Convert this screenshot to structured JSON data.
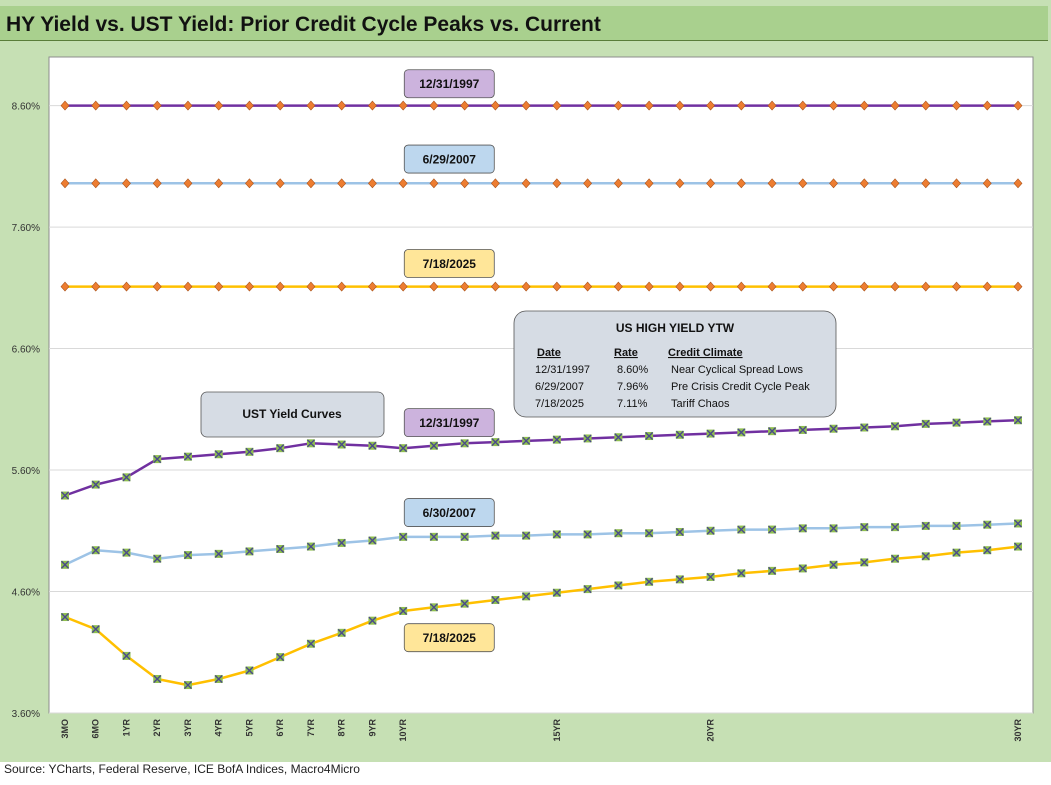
{
  "title": "HY Yield vs. UST Yield: Prior Credit Cycle Peaks vs. Current",
  "source": "Source: YCharts, Federal Reserve, ICE BofA Indices, Macro4Micro",
  "colors": {
    "purple": "#7030a0",
    "blue": "#9dc3e6",
    "gold": "#ffc000",
    "diamond": "#ed7d31",
    "marker_fill": "#8fbf4f",
    "marker_x": "#4a4a8a",
    "label_purple": "#ccb3dd",
    "label_blue": "#bdd7ee",
    "label_gold": "#ffe699",
    "box_gray": "#d6dce4"
  },
  "chart_data": {
    "type": "line",
    "title": "HY Yield vs. UST Yield: Prior Credit Cycle Peaks vs. Current",
    "xlabel": "",
    "ylabel": "",
    "ylim": [
      3.6,
      9.0
    ],
    "yticks": [
      3.6,
      4.6,
      5.6,
      6.6,
      7.6,
      8.6
    ],
    "ytick_labels": [
      "3.60%",
      "4.60%",
      "5.60%",
      "6.60%",
      "7.60%",
      "8.60%"
    ],
    "categories": [
      "3MO",
      "6MO",
      "1YR",
      "2YR",
      "3YR",
      "4YR",
      "5YR",
      "6YR",
      "7YR",
      "8YR",
      "9YR",
      "10YR",
      "11YR",
      "12YR",
      "13YR",
      "14YR",
      "15YR",
      "16YR",
      "17YR",
      "18YR",
      "19YR",
      "20YR",
      "21YR",
      "22YR",
      "23YR",
      "24YR",
      "25YR",
      "26YR",
      "27YR",
      "28YR",
      "29YR",
      "30YR"
    ],
    "tick_labels": [
      "3MO",
      "6MO",
      "1YR",
      "2YR",
      "3YR",
      "4YR",
      "5YR",
      "6YR",
      "7YR",
      "8YR",
      "9YR",
      "10YR",
      "",
      "",
      "",
      "",
      "15YR",
      "",
      "",
      "",
      "",
      "20YR",
      "",
      "",
      "",
      "",
      "",
      "",
      "",
      "",
      "",
      "30YR"
    ],
    "series": [
      {
        "name": "HY 12/31/1997",
        "kind": "hy",
        "color": "purple",
        "values": [
          8.6,
          8.6,
          8.6,
          8.6,
          8.6,
          8.6,
          8.6,
          8.6,
          8.6,
          8.6,
          8.6,
          8.6,
          8.6,
          8.6,
          8.6,
          8.6,
          8.6,
          8.6,
          8.6,
          8.6,
          8.6,
          8.6,
          8.6,
          8.6,
          8.6,
          8.6,
          8.6,
          8.6,
          8.6,
          8.6,
          8.6,
          8.6
        ]
      },
      {
        "name": "HY 6/29/2007",
        "kind": "hy",
        "color": "blue",
        "values": [
          7.96,
          7.96,
          7.96,
          7.96,
          7.96,
          7.96,
          7.96,
          7.96,
          7.96,
          7.96,
          7.96,
          7.96,
          7.96,
          7.96,
          7.96,
          7.96,
          7.96,
          7.96,
          7.96,
          7.96,
          7.96,
          7.96,
          7.96,
          7.96,
          7.96,
          7.96,
          7.96,
          7.96,
          7.96,
          7.96,
          7.96,
          7.96
        ]
      },
      {
        "name": "HY 7/18/2025",
        "kind": "hy",
        "color": "gold",
        "values": [
          7.11,
          7.11,
          7.11,
          7.11,
          7.11,
          7.11,
          7.11,
          7.11,
          7.11,
          7.11,
          7.11,
          7.11,
          7.11,
          7.11,
          7.11,
          7.11,
          7.11,
          7.11,
          7.11,
          7.11,
          7.11,
          7.11,
          7.11,
          7.11,
          7.11,
          7.11,
          7.11,
          7.11,
          7.11,
          7.11,
          7.11,
          7.11
        ]
      },
      {
        "name": "UST 12/31/1997",
        "kind": "ust",
        "color": "purple",
        "values": [
          5.39,
          5.48,
          5.54,
          5.69,
          5.71,
          5.73,
          5.75,
          5.78,
          5.82,
          5.81,
          5.8,
          5.78,
          5.8,
          5.82,
          5.83,
          5.84,
          5.85,
          5.86,
          5.87,
          5.88,
          5.89,
          5.9,
          5.91,
          5.92,
          5.93,
          5.94,
          5.95,
          5.96,
          5.98,
          5.99,
          6.0,
          6.01
        ]
      },
      {
        "name": "UST 6/30/2007",
        "kind": "ust",
        "color": "blue",
        "values": [
          4.82,
          4.94,
          4.92,
          4.87,
          4.9,
          4.91,
          4.93,
          4.95,
          4.97,
          5.0,
          5.02,
          5.05,
          5.05,
          5.05,
          5.06,
          5.06,
          5.07,
          5.07,
          5.08,
          5.08,
          5.09,
          5.1,
          5.11,
          5.11,
          5.12,
          5.12,
          5.13,
          5.13,
          5.14,
          5.14,
          5.15,
          5.16
        ]
      },
      {
        "name": "UST 7/18/2025",
        "kind": "ust",
        "color": "gold",
        "values": [
          4.39,
          4.29,
          4.07,
          3.88,
          3.83,
          3.88,
          3.95,
          4.06,
          4.17,
          4.26,
          4.36,
          4.44,
          4.47,
          4.5,
          4.53,
          4.56,
          4.59,
          4.62,
          4.65,
          4.68,
          4.7,
          4.72,
          4.75,
          4.77,
          4.79,
          4.82,
          4.84,
          4.87,
          4.89,
          4.92,
          4.94,
          4.97
        ]
      }
    ],
    "labels": [
      {
        "text": "12/31/1997",
        "style": "label_purple",
        "x": 12.5,
        "y": 8.78
      },
      {
        "text": "6/29/2007",
        "style": "label_blue",
        "x": 12.5,
        "y": 8.16
      },
      {
        "text": "7/18/2025",
        "style": "label_gold",
        "x": 12.5,
        "y": 7.3
      },
      {
        "text": "12/31/1997",
        "style": "label_purple",
        "x": 12.5,
        "y": 5.99
      },
      {
        "text": "6/30/2007",
        "style": "label_blue",
        "x": 12.5,
        "y": 5.25
      },
      {
        "text": "7/18/2025",
        "style": "label_gold",
        "x": 12.5,
        "y": 4.22
      }
    ],
    "ust_box": {
      "text": "UST  Yield Curves"
    },
    "ytw_table": {
      "title": "US HIGH YIELD YTW",
      "headers": [
        "Date",
        "Rate",
        "Credit Climate"
      ],
      "rows": [
        [
          "12/31/1997",
          "8.60%",
          "Near Cyclical Spread Lows"
        ],
        [
          "6/29/2007",
          "7.96%",
          "Pre Crisis Credit Cycle Peak"
        ],
        [
          "7/18/2025",
          "7.11%",
          "Tariff Chaos"
        ]
      ]
    }
  }
}
